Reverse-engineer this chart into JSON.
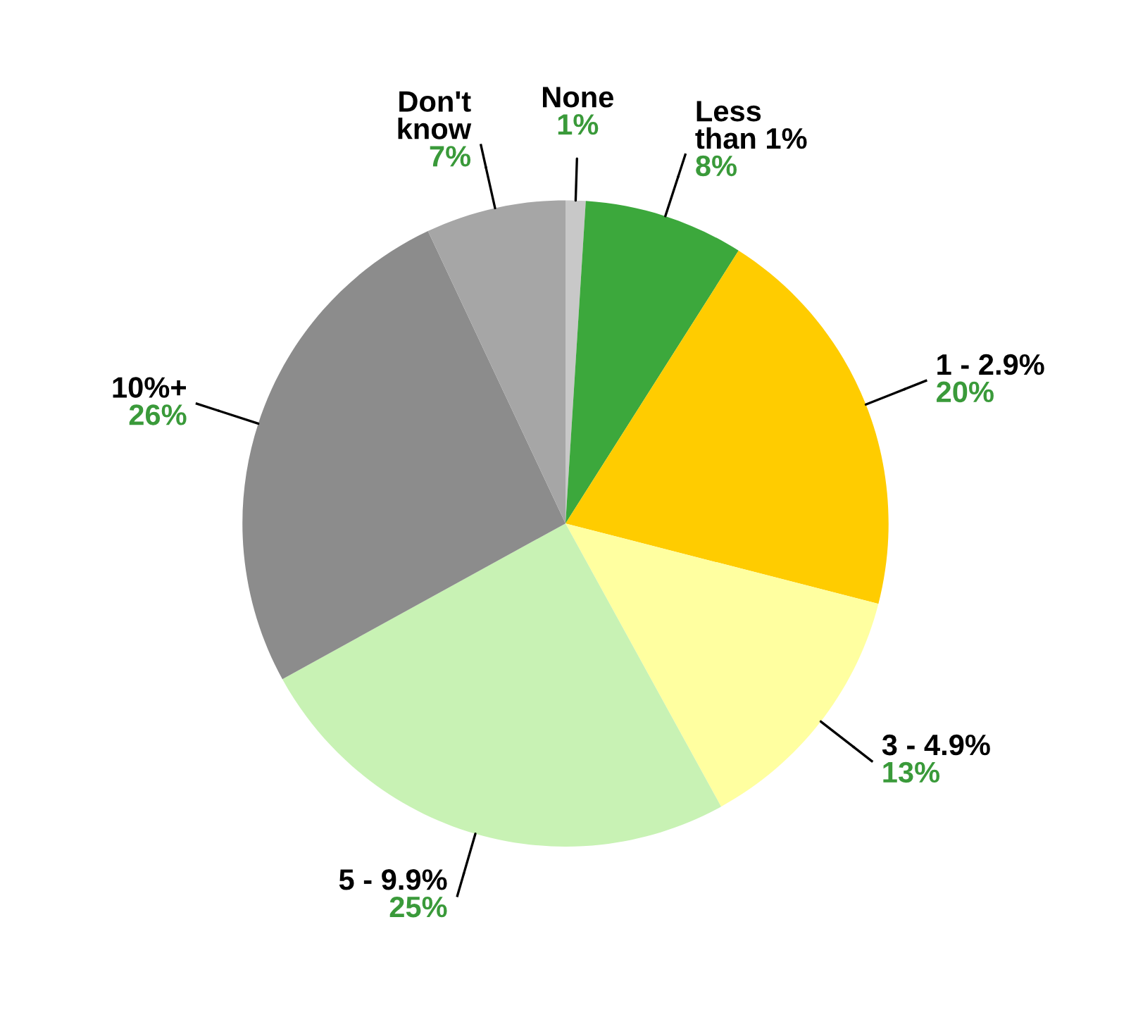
{
  "chart_data": {
    "type": "pie",
    "categories": [
      "None",
      "Less\nthan 1%",
      "1 - 2.9%",
      "3 - 4.9%",
      "5 - 9.9%",
      "10%+",
      "Don't\nknow"
    ],
    "values": [
      1,
      8,
      20,
      13,
      25,
      26,
      7
    ],
    "colors": [
      "#c8c8c8",
      "#3ca83c",
      "#ffcc00",
      "#ffffa0",
      "#c8f2b4",
      "#8c8c8c",
      "#a6a6a6"
    ],
    "value_labels": [
      "1%",
      "8%",
      "20%",
      "13%",
      "25%",
      "26%",
      "7%"
    ],
    "legend": false
  }
}
